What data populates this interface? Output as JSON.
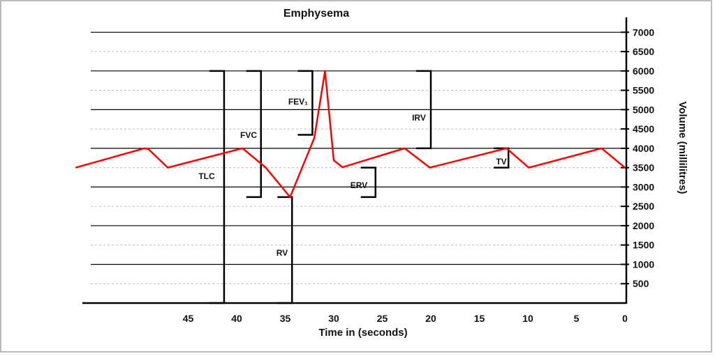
{
  "chart_data": {
    "type": "line",
    "title": "Emphysema",
    "xlabel": "Time in (seconds)",
    "ylabel": "Volume (millilitres)",
    "x_reversed": true,
    "xlim": [
      56,
      0
    ],
    "ylim": [
      0,
      7000
    ],
    "x_ticks": [
      45,
      40,
      35,
      30,
      25,
      20,
      15,
      10,
      5,
      0
    ],
    "y_ticks": [
      500,
      1000,
      1500,
      2000,
      2500,
      3000,
      3500,
      4000,
      4500,
      5000,
      5500,
      6000,
      6500,
      7000
    ],
    "grid": {
      "major_solid_every": 1000,
      "minor_dotted_every": 500
    },
    "series": [
      {
        "color": "#ff0000",
        "x": [
          56.6,
          49.5,
          49.1,
          47.1,
          39.4,
          37.0,
          34.5,
          32.0,
          30.9,
          30.0,
          29.1,
          22.7,
          20.1,
          12.2,
          9.9,
          2.4,
          0
        ],
        "y": [
          3500,
          4000,
          3980,
          3500,
          4000,
          3500,
          2740,
          4270,
          6000,
          3690,
          3510,
          4000,
          3500,
          4000,
          3500,
          4000,
          3500
        ]
      }
    ],
    "annotations": [
      {
        "label": "TLC",
        "time": 41.3,
        "from": 0,
        "to": 6000
      },
      {
        "label": "FVC",
        "time": 37.5,
        "from": 2740,
        "to": 6000
      },
      {
        "label": "FEV₁",
        "time": 32.2,
        "from": 4350,
        "to": 6000
      },
      {
        "label": "RV",
        "time": 34.3,
        "from": 0,
        "to": 2740
      },
      {
        "label": "ERV",
        "time": 25.7,
        "from": 2740,
        "to": 3500
      },
      {
        "label": "IRV",
        "time": 20.0,
        "from": 4000,
        "to": 6000
      },
      {
        "label": "TV",
        "time": 12.0,
        "from": 3500,
        "to": 4000
      }
    ]
  }
}
